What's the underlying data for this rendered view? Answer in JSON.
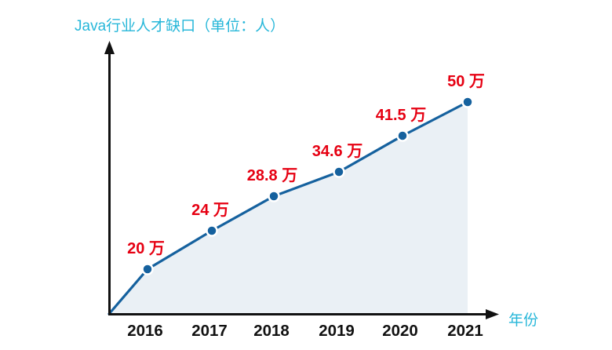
{
  "chart_data": {
    "type": "area",
    "title": "Java行业人才缺口（单位：人）",
    "xlabel": "年份",
    "ylabel": "",
    "unit": "万",
    "categories": [
      "2016",
      "2017",
      "2018",
      "2019",
      "2020",
      "2021"
    ],
    "values": [
      20,
      24,
      28.8,
      34.6,
      41.5,
      50
    ],
    "point_labels": [
      "20 万",
      "24 万",
      "28.8 万",
      "34.6 万",
      "41.5 万",
      "50 万"
    ],
    "ylim": [
      0,
      50
    ],
    "grid": false,
    "legend": "none",
    "line_starts_at_origin": true
  },
  "colors": {
    "title": "#27b7d9",
    "xlabel": "#27b7d9",
    "value_label": "#e60012",
    "line": "#15619e",
    "point_fill": "#15619e",
    "point_halo": "#ffffff",
    "area_fill": "#eaf0f5",
    "axis": "#111111",
    "tick_text": "#111111"
  }
}
